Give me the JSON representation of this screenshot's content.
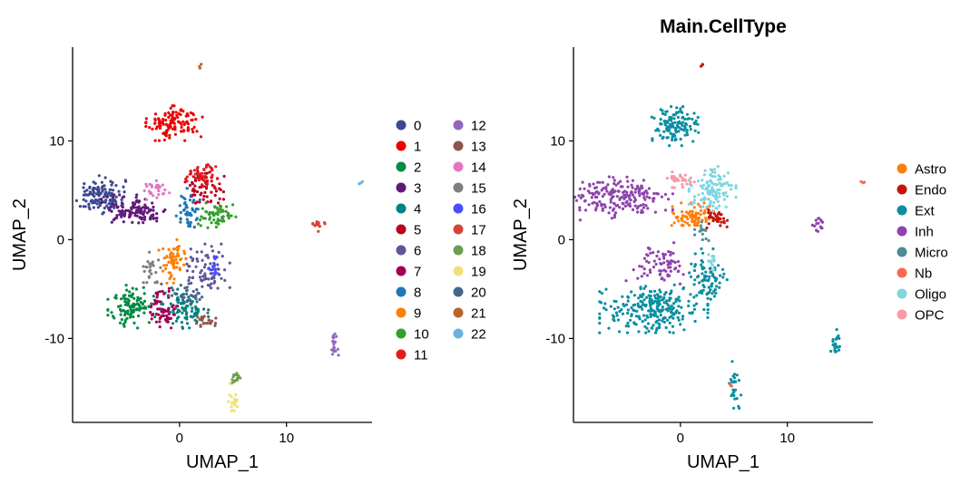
{
  "chart_data": [
    {
      "type": "scatter",
      "title": "",
      "xlabel": "UMAP_1",
      "ylabel": "UMAP_2",
      "xlim": [
        -10,
        18
      ],
      "ylim": [
        -18.5,
        19.5
      ],
      "xticks": [
        0,
        10
      ],
      "yticks": [
        -10,
        0,
        10
      ],
      "legend_position": "right",
      "legend_columns": 2,
      "series": [
        {
          "name": "0",
          "color": "#3b4992",
          "clusters": [
            {
              "x": -7.5,
              "y": 4.5,
              "sx": 1.2,
              "sy": 0.9,
              "n": 140
            }
          ]
        },
        {
          "name": "1",
          "color": "#ee0000",
          "clusters": [
            {
              "x": -0.5,
              "y": 11.8,
              "sx": 1.2,
              "sy": 0.8,
              "n": 120
            }
          ]
        },
        {
          "name": "2",
          "color": "#008b45",
          "clusters": [
            {
              "x": -4.5,
              "y": -6.8,
              "sx": 1.0,
              "sy": 1.0,
              "n": 110
            }
          ]
        },
        {
          "name": "3",
          "color": "#631879",
          "clusters": [
            {
              "x": -4.0,
              "y": 3.0,
              "sx": 1.5,
              "sy": 0.7,
              "n": 110
            }
          ]
        },
        {
          "name": "4",
          "color": "#008280",
          "clusters": [
            {
              "x": 0.5,
              "y": -7.0,
              "sx": 1.0,
              "sy": 0.9,
              "n": 90
            }
          ]
        },
        {
          "name": "5",
          "color": "#bb0021",
          "clusters": [
            {
              "x": 2.2,
              "y": 5.5,
              "sx": 0.9,
              "sy": 0.9,
              "n": 70
            }
          ]
        },
        {
          "name": "6",
          "color": "#5f559b",
          "clusters": [
            {
              "x": 2.5,
              "y": -3.3,
              "sx": 1.0,
              "sy": 1.3,
              "n": 80
            }
          ]
        },
        {
          "name": "7",
          "color": "#a20056",
          "clusters": [
            {
              "x": -1.5,
              "y": -7.0,
              "sx": 0.6,
              "sy": 1.0,
              "n": 60
            }
          ]
        },
        {
          "name": "8",
          "color": "#1f78b4",
          "clusters": [
            {
              "x": 0.8,
              "y": 3.0,
              "sx": 0.5,
              "sy": 1.0,
              "n": 50
            }
          ]
        },
        {
          "name": "9",
          "color": "#ff7f00",
          "clusters": [
            {
              "x": -0.5,
              "y": -2.2,
              "sx": 0.7,
              "sy": 1.0,
              "n": 60
            }
          ]
        },
        {
          "name": "10",
          "color": "#33a02c",
          "clusters": [
            {
              "x": 3.5,
              "y": 2.4,
              "sx": 0.8,
              "sy": 0.6,
              "n": 60
            }
          ]
        },
        {
          "name": "11",
          "color": "#e31a1c",
          "clusters": [
            {
              "x": 2.0,
              "y": 6.5,
              "sx": 0.7,
              "sy": 0.5,
              "n": 40
            }
          ]
        },
        {
          "name": "12",
          "color": "#9467bd",
          "clusters": [
            {
              "x": 14.5,
              "y": -10.5,
              "sx": 0.2,
              "sy": 0.8,
              "n": 20
            }
          ]
        },
        {
          "name": "13",
          "color": "#8c564b",
          "clusters": [
            {
              "x": 2.3,
              "y": -8.3,
              "sx": 0.5,
              "sy": 0.4,
              "n": 25
            }
          ]
        },
        {
          "name": "14",
          "color": "#e377c2",
          "clusters": [
            {
              "x": -2.2,
              "y": 5.0,
              "sx": 0.6,
              "sy": 0.5,
              "n": 30
            }
          ]
        },
        {
          "name": "15",
          "color": "#7f7f7f",
          "clusters": [
            {
              "x": -2.5,
              "y": -2.8,
              "sx": 0.4,
              "sy": 0.7,
              "n": 25
            }
          ]
        },
        {
          "name": "16",
          "color": "#4d4dff",
          "clusters": [
            {
              "x": 3.2,
              "y": -2.8,
              "sx": 0.2,
              "sy": 0.5,
              "n": 15
            }
          ]
        },
        {
          "name": "17",
          "color": "#d44535",
          "clusters": [
            {
              "x": 13.0,
              "y": 1.5,
              "sx": 0.3,
              "sy": 0.3,
              "n": 15
            }
          ]
        },
        {
          "name": "18",
          "color": "#6e9e4f",
          "clusters": [
            {
              "x": 5.2,
              "y": -14.2,
              "sx": 0.3,
              "sy": 0.5,
              "n": 15
            }
          ]
        },
        {
          "name": "19",
          "color": "#f0e17a",
          "clusters": [
            {
              "x": 5.0,
              "y": -16.2,
              "sx": 0.2,
              "sy": 0.8,
              "n": 20
            }
          ]
        },
        {
          "name": "20",
          "color": "#456789",
          "clusters": [
            {
              "x": 0.5,
              "y": -5.5,
              "sx": 1.0,
              "sy": 0.6,
              "n": 30
            }
          ]
        },
        {
          "name": "21",
          "color": "#b5652e",
          "clusters": [
            {
              "x": 2.0,
              "y": 17.6,
              "sx": 0.1,
              "sy": 0.1,
              "n": 3
            }
          ]
        },
        {
          "name": "22",
          "color": "#6bb1e0",
          "clusters": [
            {
              "x": 17.0,
              "y": 5.8,
              "sx": 0.1,
              "sy": 0.1,
              "n": 3
            }
          ]
        }
      ]
    },
    {
      "type": "scatter",
      "title": "Main.CellType",
      "xlabel": "UMAP_1",
      "ylabel": "UMAP_2",
      "xlim": [
        -10,
        18
      ],
      "ylim": [
        -18.5,
        19.5
      ],
      "xticks": [
        0,
        10
      ],
      "yticks": [
        -10,
        0,
        10
      ],
      "legend_position": "right",
      "legend_columns": 1,
      "series": [
        {
          "name": "Astro",
          "color": "#ff7f0e",
          "clusters": [
            {
              "x": 1.2,
              "y": 2.4,
              "sx": 1.0,
              "sy": 0.6,
              "n": 80
            }
          ]
        },
        {
          "name": "Endo",
          "color": "#c3170b",
          "clusters": [
            {
              "x": 3.5,
              "y": 2.2,
              "sx": 0.6,
              "sy": 0.5,
              "n": 35
            },
            {
              "x": 2.0,
              "y": 17.6,
              "sx": 0.1,
              "sy": 0.1,
              "n": 3
            }
          ]
        },
        {
          "name": "Ext",
          "color": "#0a8fa0",
          "clusters": [
            {
              "x": -0.5,
              "y": 11.5,
              "sx": 1.1,
              "sy": 0.9,
              "n": 120
            },
            {
              "x": -2.5,
              "y": -7.0,
              "sx": 2.3,
              "sy": 1.1,
              "n": 260
            },
            {
              "x": 2.5,
              "y": -4.0,
              "sx": 0.9,
              "sy": 1.4,
              "n": 80
            },
            {
              "x": 14.5,
              "y": -10.5,
              "sx": 0.2,
              "sy": 0.8,
              "n": 20
            },
            {
              "x": 5.0,
              "y": -15.0,
              "sx": 0.3,
              "sy": 1.3,
              "n": 25
            }
          ]
        },
        {
          "name": "Inh",
          "color": "#8e44ad",
          "clusters": [
            {
              "x": -6.0,
              "y": 4.2,
              "sx": 2.4,
              "sy": 1.0,
              "n": 200
            },
            {
              "x": -2.0,
              "y": -2.5,
              "sx": 1.4,
              "sy": 1.0,
              "n": 70
            },
            {
              "x": 13.0,
              "y": 1.5,
              "sx": 0.3,
              "sy": 0.3,
              "n": 15
            }
          ]
        },
        {
          "name": "Micro",
          "color": "#4f8c94",
          "clusters": [
            {
              "x": 2.0,
              "y": 1.0,
              "sx": 0.3,
              "sy": 0.5,
              "n": 15
            }
          ]
        },
        {
          "name": "Nb",
          "color": "#fa6a50",
          "clusters": [
            {
              "x": 17.0,
              "y": 5.8,
              "sx": 0.1,
              "sy": 0.1,
              "n": 3
            },
            {
              "x": 4.6,
              "y": -15.0,
              "sx": 0.1,
              "sy": 0.2,
              "n": 3
            }
          ]
        },
        {
          "name": "Oligo",
          "color": "#7dd6e0",
          "clusters": [
            {
              "x": 3.0,
              "y": 5.0,
              "sx": 1.0,
              "sy": 1.1,
              "n": 110
            },
            {
              "x": 3.0,
              "y": -2.0,
              "sx": 0.3,
              "sy": 0.5,
              "n": 12
            }
          ]
        },
        {
          "name": "OPC",
          "color": "#f799a6",
          "clusters": [
            {
              "x": 0.0,
              "y": 6.0,
              "sx": 0.8,
              "sy": 0.4,
              "n": 30
            }
          ]
        }
      ]
    }
  ]
}
